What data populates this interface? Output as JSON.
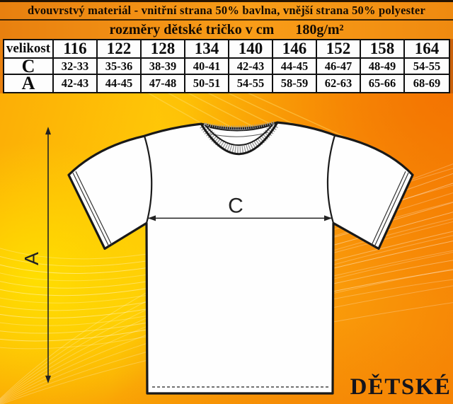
{
  "banner": {
    "line1": "dvouvrstvý materiál - vnitřní strana 50% bavlna, vnější strana 50% polyester",
    "line2_title": "rozměry dětské tričko v cm",
    "line2_weight": "180g/m²"
  },
  "size_table": {
    "col_header_label": "velikost",
    "sizes": [
      "116",
      "122",
      "128",
      "134",
      "140",
      "146",
      "152",
      "158",
      "164"
    ],
    "rows": [
      {
        "label": "C",
        "values": [
          "32-33",
          "35-36",
          "38-39",
          "40-41",
          "42-43",
          "44-45",
          "46-47",
          "48-49",
          "54-55"
        ]
      },
      {
        "label": "A",
        "values": [
          "42-43",
          "44-45",
          "47-48",
          "50-51",
          "54-55",
          "58-59",
          "62-63",
          "65-66",
          "68-69"
        ]
      }
    ]
  },
  "diagram": {
    "chest_label": "C",
    "length_label": "A",
    "product_label": "DĚTSKÉ"
  },
  "colors": {
    "banner_orange": "#ef8712",
    "background_yellow": "#ffd105",
    "background_orange": "#f57f02",
    "table_border": "#101010",
    "shirt_outline": "#191919",
    "text_dark": "#140b02"
  }
}
